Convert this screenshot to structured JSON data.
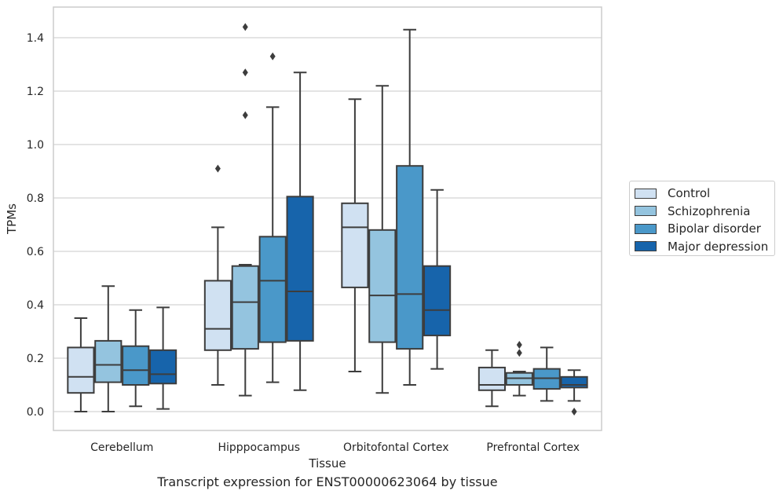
{
  "chart_data": {
    "type": "box",
    "title": "",
    "xlabel": "Tissue",
    "ylabel": "TPMs",
    "caption": "Transcript expression for ENST00000623064 by tissue",
    "ylim": [
      -0.07,
      1.52
    ],
    "yticks": [
      "0.0",
      "0.2",
      "0.4",
      "0.6",
      "0.8",
      "1.0",
      "1.2",
      "1.4"
    ],
    "grid": true,
    "legend_position": "right",
    "categories": [
      "Cerebellum",
      "Hipppocampus",
      "Orbitofontal Cortex",
      "Prefrontal Cortex"
    ],
    "series": [
      {
        "name": "Control",
        "color": "#d0e1f2",
        "boxes": [
          {
            "whislo": 0.0,
            "q1": 0.07,
            "med": 0.13,
            "q3": 0.24,
            "whishi": 0.35,
            "fliers": []
          },
          {
            "whislo": 0.1,
            "q1": 0.23,
            "med": 0.31,
            "q3": 0.49,
            "whishi": 0.69,
            "fliers": [
              0.91
            ]
          },
          {
            "whislo": 0.15,
            "q1": 0.465,
            "med": 0.69,
            "q3": 0.78,
            "whishi": 1.17,
            "fliers": []
          },
          {
            "whislo": 0.02,
            "q1": 0.08,
            "med": 0.1,
            "q3": 0.165,
            "whishi": 0.23,
            "fliers": []
          }
        ]
      },
      {
        "name": "Schizophrenia",
        "color": "#94c4df",
        "boxes": [
          {
            "whislo": 0.0,
            "q1": 0.11,
            "med": 0.175,
            "q3": 0.265,
            "whishi": 0.47,
            "fliers": []
          },
          {
            "whislo": 0.06,
            "q1": 0.235,
            "med": 0.41,
            "q3": 0.545,
            "whishi": 0.55,
            "fliers": [
              1.11,
              1.27,
              1.44
            ]
          },
          {
            "whislo": 0.07,
            "q1": 0.26,
            "med": 0.435,
            "q3": 0.68,
            "whishi": 1.22,
            "fliers": []
          },
          {
            "whislo": 0.06,
            "q1": 0.1,
            "med": 0.125,
            "q3": 0.145,
            "whishi": 0.15,
            "fliers": [
              0.22,
              0.25
            ]
          }
        ]
      },
      {
        "name": "Bipolar disorder",
        "color": "#4a98c9",
        "boxes": [
          {
            "whislo": 0.02,
            "q1": 0.1,
            "med": 0.155,
            "q3": 0.245,
            "whishi": 0.38,
            "fliers": []
          },
          {
            "whislo": 0.11,
            "q1": 0.26,
            "med": 0.49,
            "q3": 0.655,
            "whishi": 1.14,
            "fliers": [
              1.33
            ]
          },
          {
            "whislo": 0.1,
            "q1": 0.235,
            "med": 0.44,
            "q3": 0.92,
            "whishi": 1.43,
            "fliers": []
          },
          {
            "whislo": 0.04,
            "q1": 0.085,
            "med": 0.125,
            "q3": 0.16,
            "whishi": 0.24,
            "fliers": []
          }
        ]
      },
      {
        "name": "Major depression",
        "color": "#1764ab",
        "boxes": [
          {
            "whislo": 0.01,
            "q1": 0.105,
            "med": 0.14,
            "q3": 0.23,
            "whishi": 0.39,
            "fliers": []
          },
          {
            "whislo": 0.08,
            "q1": 0.265,
            "med": 0.45,
            "q3": 0.805,
            "whishi": 1.27,
            "fliers": []
          },
          {
            "whislo": 0.16,
            "q1": 0.285,
            "med": 0.38,
            "q3": 0.545,
            "whishi": 0.83,
            "fliers": []
          },
          {
            "whislo": 0.04,
            "q1": 0.09,
            "med": 0.1,
            "q3": 0.13,
            "whishi": 0.155,
            "fliers": [
              0.0
            ]
          }
        ]
      }
    ]
  }
}
